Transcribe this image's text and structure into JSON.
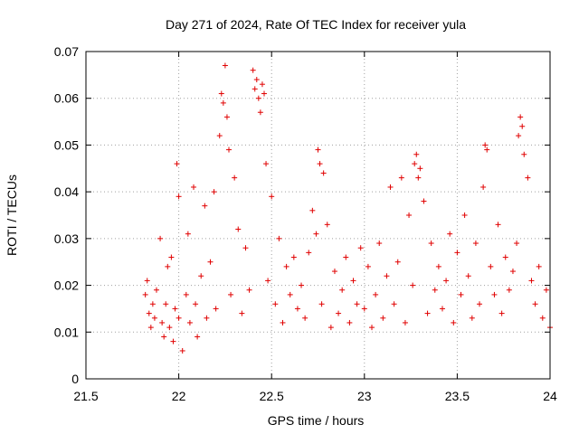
{
  "chart_data": {
    "type": "scatter",
    "title": "Day 271 of 2024, Rate Of TEC Index for receiver yula",
    "xlabel": "GPS time / hours",
    "ylabel": "ROTI / TECUs",
    "xlim": [
      21.5,
      24
    ],
    "ylim": [
      0,
      0.07
    ],
    "x_ticks": [
      21.5,
      22,
      22.5,
      23,
      23.5,
      24
    ],
    "x_tick_labels": [
      "21.5",
      "22",
      "22.5",
      "23",
      "23.5",
      "24"
    ],
    "y_ticks": [
      0,
      0.01,
      0.02,
      0.03,
      0.04,
      0.05,
      0.06,
      0.07
    ],
    "y_tick_labels": [
      "0",
      "0.01",
      "0.02",
      "0.03",
      "0.04",
      "0.05",
      "0.06",
      "0.07"
    ],
    "grid": true,
    "marker": "+",
    "color": "#e00000",
    "series": [
      {
        "name": "ROTI",
        "x": [
          21.82,
          21.83,
          21.84,
          21.85,
          21.86,
          21.87,
          21.88,
          21.9,
          21.91,
          21.92,
          21.93,
          21.94,
          21.95,
          21.96,
          21.97,
          21.98,
          21.99,
          22.0,
          22.0,
          22.02,
          22.04,
          22.05,
          22.06,
          22.08,
          22.09,
          22.1,
          22.12,
          22.14,
          22.15,
          22.17,
          22.19,
          22.2,
          22.22,
          22.23,
          22.24,
          22.25,
          22.26,
          22.27,
          22.28,
          22.3,
          22.32,
          22.34,
          22.36,
          22.38,
          22.4,
          22.41,
          22.42,
          22.43,
          22.44,
          22.45,
          22.46,
          22.47,
          22.48,
          22.5,
          22.52,
          22.54,
          22.56,
          22.58,
          22.6,
          22.62,
          22.64,
          22.66,
          22.68,
          22.7,
          22.72,
          22.74,
          22.75,
          22.76,
          22.77,
          22.78,
          22.8,
          22.82,
          22.84,
          22.86,
          22.88,
          22.9,
          22.92,
          22.94,
          22.96,
          22.98,
          23.0,
          23.02,
          23.04,
          23.06,
          23.08,
          23.1,
          23.12,
          23.14,
          23.16,
          23.18,
          23.2,
          23.22,
          23.24,
          23.26,
          23.27,
          23.28,
          23.29,
          23.3,
          23.32,
          23.34,
          23.36,
          23.38,
          23.4,
          23.42,
          23.44,
          23.46,
          23.48,
          23.5,
          23.52,
          23.54,
          23.56,
          23.58,
          23.6,
          23.62,
          23.64,
          23.65,
          23.66,
          23.68,
          23.7,
          23.72,
          23.74,
          23.76,
          23.78,
          23.8,
          23.82,
          23.83,
          23.84,
          23.85,
          23.86,
          23.88,
          23.9,
          23.92,
          23.94,
          23.96,
          23.98,
          24.0
        ],
        "y": [
          0.018,
          0.021,
          0.014,
          0.011,
          0.016,
          0.013,
          0.019,
          0.03,
          0.012,
          0.009,
          0.016,
          0.024,
          0.011,
          0.026,
          0.008,
          0.015,
          0.046,
          0.039,
          0.013,
          0.006,
          0.018,
          0.031,
          0.012,
          0.041,
          0.016,
          0.009,
          0.022,
          0.037,
          0.013,
          0.025,
          0.04,
          0.015,
          0.052,
          0.061,
          0.059,
          0.067,
          0.056,
          0.049,
          0.018,
          0.043,
          0.032,
          0.014,
          0.028,
          0.019,
          0.066,
          0.062,
          0.064,
          0.06,
          0.057,
          0.063,
          0.061,
          0.046,
          0.021,
          0.039,
          0.016,
          0.03,
          0.012,
          0.024,
          0.018,
          0.026,
          0.015,
          0.02,
          0.013,
          0.027,
          0.036,
          0.031,
          0.049,
          0.046,
          0.016,
          0.044,
          0.033,
          0.011,
          0.023,
          0.014,
          0.019,
          0.026,
          0.012,
          0.021,
          0.016,
          0.028,
          0.015,
          0.024,
          0.011,
          0.018,
          0.029,
          0.013,
          0.022,
          0.041,
          0.016,
          0.025,
          0.043,
          0.012,
          0.035,
          0.02,
          0.046,
          0.048,
          0.043,
          0.045,
          0.038,
          0.014,
          0.029,
          0.019,
          0.024,
          0.015,
          0.021,
          0.031,
          0.012,
          0.027,
          0.018,
          0.035,
          0.022,
          0.013,
          0.029,
          0.016,
          0.041,
          0.05,
          0.049,
          0.024,
          0.018,
          0.033,
          0.014,
          0.026,
          0.019,
          0.023,
          0.029,
          0.052,
          0.056,
          0.054,
          0.048,
          0.043,
          0.021,
          0.016,
          0.024,
          0.013,
          0.019,
          0.011
        ]
      }
    ]
  }
}
